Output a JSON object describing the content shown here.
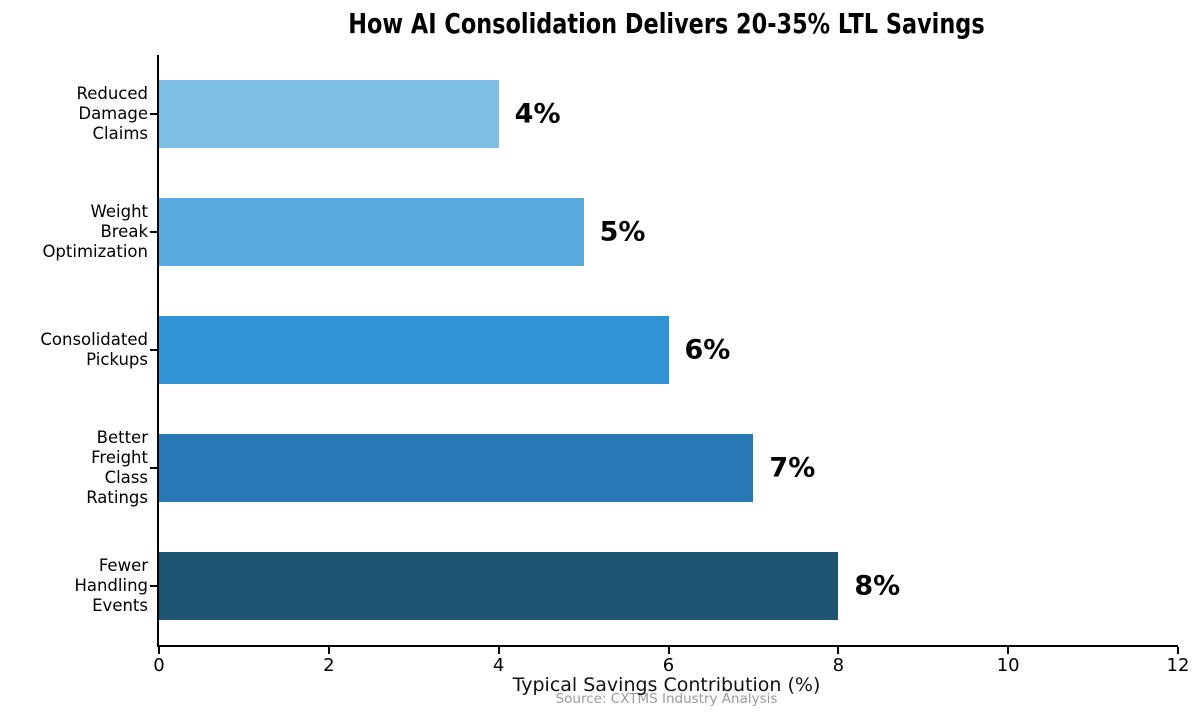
{
  "chart_data": {
    "type": "bar",
    "orientation": "horizontal",
    "title": "How AI Consolidation Delivers 20-35% LTL Savings",
    "xlabel": "Typical Savings Contribution (%)",
    "source": "Source: CXTMS Industry Analysis",
    "categories": [
      "Reduced Damage Claims",
      "Weight Break Optimization",
      "Consolidated Pickups",
      "Better Freight Class Ratings",
      "Fewer Handling Events"
    ],
    "category_lines": [
      [
        "Reduced",
        "Damage Claims"
      ],
      [
        "Weight Break",
        "Optimization"
      ],
      [
        "Consolidated",
        "Pickups"
      ],
      [
        "Better Freight",
        "Class Ratings"
      ],
      [
        "Fewer Handling",
        "Events"
      ]
    ],
    "values": [
      4,
      5,
      6,
      7,
      8
    ],
    "value_labels": [
      "4%",
      "5%",
      "6%",
      "7%",
      "8%"
    ],
    "bar_colors": [
      "#7FBEE4",
      "#58AADD",
      "#3193D6",
      "#2979B7",
      "#1E5573"
    ],
    "xlim": [
      0,
      12
    ],
    "x_ticks": [
      0,
      2,
      4,
      6,
      8,
      10,
      12
    ],
    "grid": false,
    "legend": "none",
    "axis_color": "#000000",
    "title_color": "#000000",
    "source_color": "#9a9a9a",
    "background_color": "#ffffff"
  }
}
